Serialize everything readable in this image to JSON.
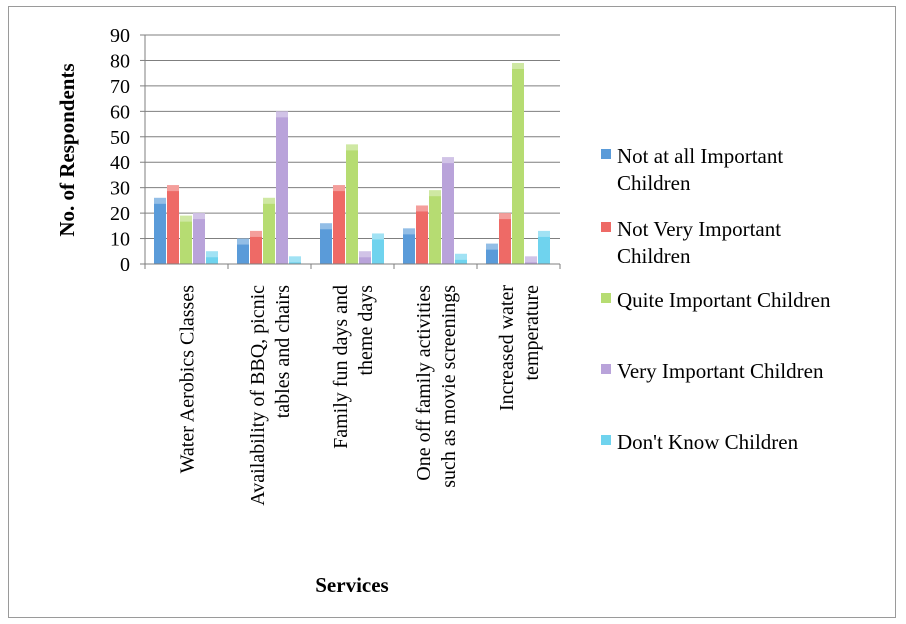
{
  "chart_data": {
    "type": "bar",
    "categories": [
      [
        "Water Aerobics Classes"
      ],
      [
        "Availability of BBQ, picnic",
        "tables and chairs"
      ],
      [
        "Family fun days and",
        "theme days"
      ],
      [
        "One off family activities",
        "such as movie screenings"
      ],
      [
        "Increased water",
        "temperature"
      ]
    ],
    "series": [
      {
        "name": "Not at all Important Children",
        "name_lines": [
          "Not at all Important",
          "Children"
        ],
        "color": "#5a9bd9",
        "values": [
          26,
          10,
          16,
          14,
          8
        ]
      },
      {
        "name": "Not Very Important Children",
        "name_lines": [
          "Not Very Important",
          "Children"
        ],
        "color": "#ee6a66",
        "values": [
          31,
          13,
          31,
          23,
          20
        ]
      },
      {
        "name": "Quite Important Children",
        "name_lines": [
          "Quite Important Children"
        ],
        "color": "#b6dc72",
        "values": [
          19,
          26,
          47,
          29,
          79
        ]
      },
      {
        "name": "Very Important Children",
        "name_lines": [
          "Very Important Children"
        ],
        "color": "#b9a3da",
        "values": [
          20,
          60,
          5,
          42,
          3
        ]
      },
      {
        "name": "Don't Know Children",
        "name_lines": [
          "Don't Know Children"
        ],
        "color": "#6fd3ee",
        "values": [
          5,
          3,
          12,
          4,
          13
        ]
      }
    ],
    "xlabel": "Services",
    "ylabel": "No. of Respondents",
    "ylim": [
      0,
      90
    ],
    "yticks": [
      0,
      10,
      20,
      30,
      40,
      50,
      60,
      70,
      80,
      90
    ],
    "grid": true,
    "legend": "right"
  }
}
